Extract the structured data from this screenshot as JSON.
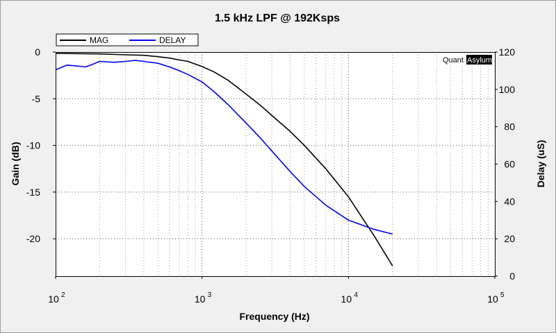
{
  "chart_data": {
    "type": "line",
    "title": "1.5 kHz LPF @ 192Ksps",
    "xlabel": "Frequency (Hz)",
    "ylabel_left": "Gain (dB)",
    "ylabel_right": "Delay (uS)",
    "x_scale": "log",
    "xlim": [
      100,
      100000
    ],
    "ylim_left": [
      -24,
      0
    ],
    "ylim_right": [
      0,
      120
    ],
    "x_ticks": [
      {
        "value": 100,
        "base": "10",
        "exp": "2"
      },
      {
        "value": 1000,
        "base": "10",
        "exp": "3"
      },
      {
        "value": 10000,
        "base": "10",
        "exp": "4"
      },
      {
        "value": 100000,
        "base": "10",
        "exp": "5"
      }
    ],
    "y_ticks_left": [
      "0",
      "-5",
      "-10",
      "-15",
      "-20"
    ],
    "y_ticks_right": [
      "120",
      "100",
      "80",
      "60",
      "40",
      "20",
      "0"
    ],
    "grid": true,
    "legend_position": "top-left",
    "watermark": {
      "part1": "Quant",
      "part2": "Asylum"
    },
    "series": [
      {
        "name": "MAG",
        "axis": "left",
        "color": "#000000",
        "x": [
          100,
          200,
          300,
          400,
          500,
          600,
          700,
          800,
          1000,
          1200,
          1500,
          2000,
          2500,
          3000,
          4000,
          5000,
          7000,
          10000,
          15000,
          20000
        ],
        "y": [
          -0.15,
          -0.2,
          -0.3,
          -0.35,
          -0.5,
          -0.65,
          -0.85,
          -1.0,
          -1.55,
          -2.1,
          -3.0,
          -4.5,
          -5.7,
          -6.8,
          -8.5,
          -10.0,
          -12.5,
          -15.5,
          -19.7,
          -22.9
        ]
      },
      {
        "name": "DELAY",
        "axis": "right",
        "color": "#0000ff",
        "x": [
          100,
          120,
          140,
          160,
          180,
          200,
          250,
          300,
          350,
          400,
          500,
          600,
          700,
          800,
          1000,
          1200,
          1500,
          2000,
          2500,
          3000,
          4000,
          5000,
          7000,
          10000,
          15000,
          20000
        ],
        "y": [
          110.5,
          113,
          112.5,
          112,
          113.5,
          115,
          114.5,
          115,
          115.5,
          115,
          114,
          112,
          110,
          108,
          104,
          99,
          92,
          82,
          74,
          67,
          56,
          48,
          38,
          30,
          25,
          22.5
        ]
      }
    ]
  }
}
